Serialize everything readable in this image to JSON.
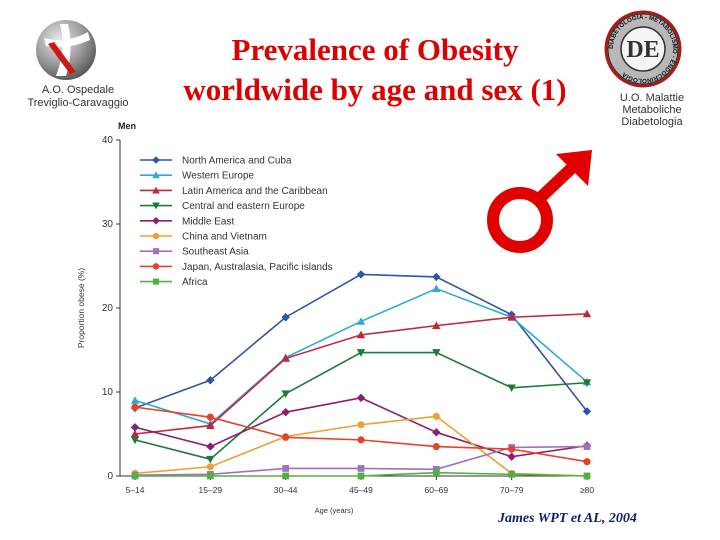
{
  "header": {
    "title_line1": "Prevalence of Obesity",
    "title_line2": "worldwide by age and sex (1)",
    "hospital_line1": "A.O. Ospedale",
    "hospital_line2": "Treviglio-Caravaggio",
    "unit_line1": "U.O. Malattie",
    "unit_line2": "Metaboliche",
    "unit_line3": "Diabetologia",
    "seal_text": "DIABETOLOGIA - METABOLISMO - ENDOCRINOLOGIA",
    "seal_monogram": "DE"
  },
  "panel_label": "Men",
  "citation": "James WPT et AL, 2004",
  "symbol_color": "#e00000",
  "chart_data": {
    "type": "line",
    "title": "",
    "xlabel": "Age (years)",
    "ylabel": "Proportion obese (%)",
    "ylim": [
      0,
      40
    ],
    "yticks": [
      0,
      10,
      20,
      30,
      40
    ],
    "grid": false,
    "legend_position": "top-left",
    "categories": [
      "5–14",
      "15–29",
      "30–44",
      "45–49",
      "60–69",
      "70–79",
      "≥80"
    ],
    "series": [
      {
        "name": "North America and Cuba",
        "color": "#2d55a8",
        "marker": "diamond",
        "values": [
          8.1,
          11.4,
          18.9,
          24.0,
          23.7,
          19.2,
          7.7
        ]
      },
      {
        "name": "Western Europe",
        "color": "#2fa8d8",
        "marker": "triangle-up",
        "values": [
          9.0,
          6.2,
          14.1,
          18.4,
          22.3,
          18.9,
          11.2
        ]
      },
      {
        "name": "Latin America and the Caribbean",
        "color": "#c0283c",
        "marker": "triangle-up",
        "values": [
          5.0,
          6.0,
          14.0,
          16.8,
          17.9,
          18.9,
          19.3
        ]
      },
      {
        "name": "Central and eastern Europe",
        "color": "#1e7a3a",
        "marker": "triangle-down",
        "values": [
          4.3,
          2.0,
          9.8,
          14.7,
          14.7,
          10.5,
          11.1
        ]
      },
      {
        "name": "Middle East",
        "color": "#8a1f6e",
        "marker": "diamond",
        "values": [
          5.8,
          3.5,
          7.6,
          9.3,
          5.2,
          2.3,
          3.6
        ]
      },
      {
        "name": "China and Vietnam",
        "color": "#f0a030",
        "marker": "circle",
        "values": [
          0.3,
          1.1,
          4.7,
          6.1,
          7.1,
          0.3,
          0.0
        ]
      },
      {
        "name": "Southeast Asia",
        "color": "#a070c0",
        "marker": "square",
        "values": [
          0.1,
          0.2,
          0.9,
          0.9,
          0.8,
          3.4,
          3.5
        ]
      },
      {
        "name": "Japan, Australasia, Pacific islands",
        "color": "#e8402a",
        "marker": "circle",
        "values": [
          8.2,
          7.0,
          4.6,
          4.3,
          3.5,
          3.2,
          1.7
        ]
      },
      {
        "name": "Africa",
        "color": "#50b040",
        "marker": "square",
        "values": [
          0.0,
          0.0,
          0.0,
          0.0,
          0.4,
          0.2,
          0.0
        ]
      }
    ]
  }
}
